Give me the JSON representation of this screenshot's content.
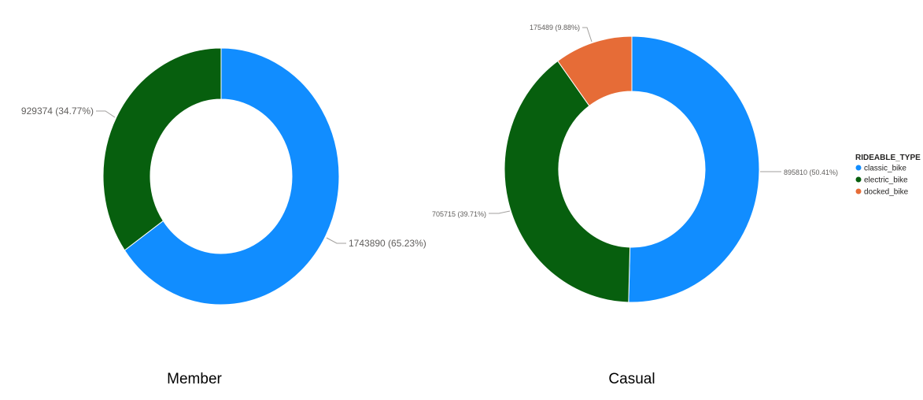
{
  "chart_data": [
    {
      "type": "pie",
      "title": "Member",
      "categories": [
        "classic_bike",
        "electric_bike"
      ],
      "values": [
        1743890,
        929374
      ],
      "labels": [
        "1743890 (65.23%)",
        "929374 (34.77%)"
      ],
      "colors": [
        "#118DFF",
        "#075F0E"
      ]
    },
    {
      "type": "pie",
      "title": "Casual",
      "categories": [
        "classic_bike",
        "electric_bike",
        "docked_bike"
      ],
      "values": [
        895810,
        705715,
        175489
      ],
      "labels": [
        "895810 (50.41%)",
        "705715 (39.71%)",
        "175489 (9.88%)"
      ],
      "colors": [
        "#118DFF",
        "#075F0E",
        "#E66C37"
      ]
    }
  ],
  "legend": {
    "title": "RIDEABLE_TYPE",
    "placement": "right",
    "items": [
      {
        "label": "classic_bike",
        "color": "#118DFF"
      },
      {
        "label": "electric_bike",
        "color": "#075F0E"
      },
      {
        "label": "docked_bike",
        "color": "#E66C37"
      }
    ]
  }
}
